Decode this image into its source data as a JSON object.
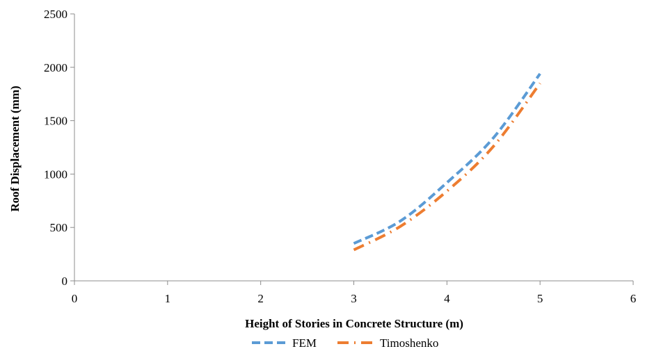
{
  "chart_data": {
    "type": "line",
    "xlabel": "Height of Stories in Concrete Structure (m)",
    "ylabel": "Roof  Displacement (mm)",
    "xlim": [
      0,
      6
    ],
    "ylim": [
      0,
      2500
    ],
    "x_ticks": [
      "0",
      "1",
      "2",
      "3",
      "4",
      "5",
      "6"
    ],
    "y_ticks": [
      "0",
      "500",
      "1000",
      "1500",
      "2000",
      "2500"
    ],
    "grid": false,
    "legend_position": "bottom",
    "series": [
      {
        "name": "FEM",
        "color": "#5B9BD5",
        "dash": "dashed",
        "x": [
          3,
          3.5,
          4,
          4.5,
          5
        ],
        "y": [
          350,
          560,
          920,
          1340,
          1940
        ]
      },
      {
        "name": "Timoshenko",
        "color": "#ED7D31",
        "dash": "dash-dot",
        "x": [
          3,
          3.5,
          4,
          4.5,
          5
        ],
        "y": [
          290,
          510,
          840,
          1260,
          1850
        ]
      }
    ]
  }
}
